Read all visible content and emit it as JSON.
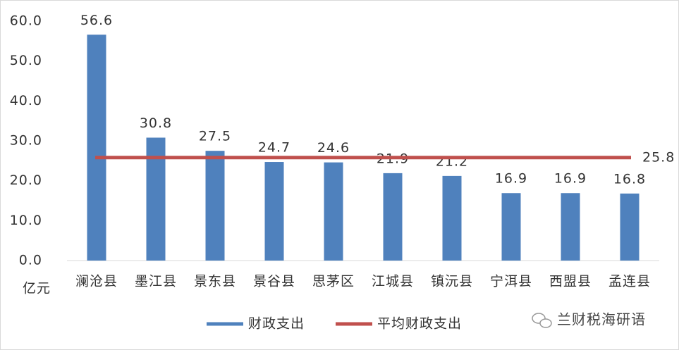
{
  "chart_data": {
    "type": "bar",
    "y_axis_label": "亿元",
    "categories": [
      "澜沧县",
      "墨江县",
      "景东县",
      "景谷县",
      "思茅区",
      "江城县",
      "镇沅县",
      "宁洱县",
      "西盟县",
      "孟连县"
    ],
    "series": [
      {
        "name": "财政支出",
        "color": "#4f81bd",
        "values": [
          56.6,
          30.8,
          27.5,
          24.7,
          24.6,
          21.9,
          21.2,
          16.9,
          16.9,
          16.8
        ]
      }
    ],
    "reference_line": {
      "name": "平均财政支出",
      "color": "#c0504d",
      "value": 25.8
    },
    "ylim": [
      0,
      60
    ],
    "yticks": [
      {
        "value": 0,
        "label": "0.0"
      },
      {
        "value": 10,
        "label": "10.0"
      },
      {
        "value": 20,
        "label": "20.0"
      },
      {
        "value": 30,
        "label": "30.0"
      },
      {
        "value": 40,
        "label": "40.0"
      },
      {
        "value": 50,
        "label": "50.0"
      },
      {
        "value": 60,
        "label": "60.0"
      }
    ],
    "grid": false,
    "watermark": "兰财税海研语"
  }
}
